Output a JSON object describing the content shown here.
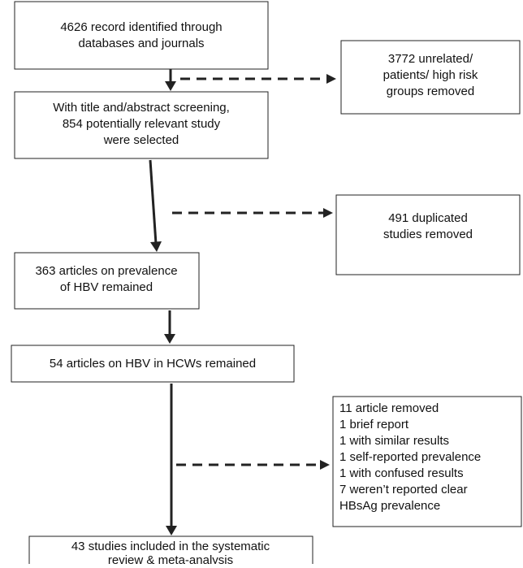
{
  "nodes": [
    {
      "lines": [
        "4626 record identified through",
        "databases and journals"
      ]
    },
    {
      "lines": [
        "3772 unrelated/",
        "patients/ high risk",
        "groups removed"
      ]
    },
    {
      "lines": [
        "With title and/abstract screening,",
        "854 potentially relevant study",
        "were selected"
      ]
    },
    {
      "lines": [
        "491 duplicated",
        "studies removed"
      ]
    },
    {
      "lines": [
        "363 articles on prevalence",
        "of HBV remained"
      ]
    },
    {
      "lines": [
        "54 articles on HBV in HCWs remained"
      ]
    },
    {
      "lines": [
        "11 article removed",
        "1 brief report",
        "1 with similar results",
        "1 self-reported prevalence",
        "1 with confused results",
        "7 weren’t reported clear",
        " HBsAg prevalence"
      ]
    },
    {
      "lines": [
        "43 studies included in the systematic",
        "review & meta-analysis"
      ]
    }
  ]
}
